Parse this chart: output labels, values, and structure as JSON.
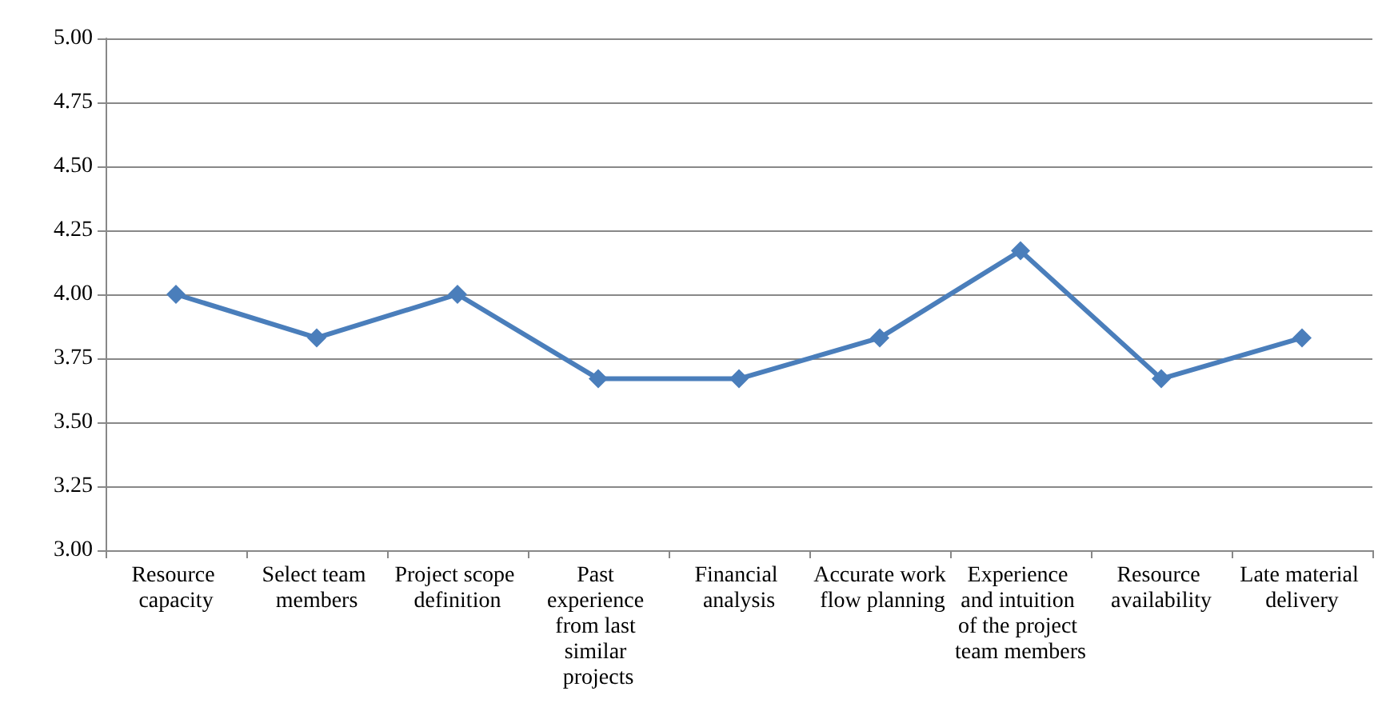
{
  "chart_data": {
    "type": "line",
    "categories": [
      "Resource capacity",
      "Select team members",
      "Project scope definition",
      "Past experience from last similar projects",
      "Financial analysis",
      "Accurate work flow planning",
      "Experience and intuition of the project team members",
      "Resource availability",
      "Late material delivery"
    ],
    "series": [
      {
        "color": "#4a7ebb",
        "values": [
          4.0,
          3.83,
          4.0,
          3.67,
          3.67,
          3.83,
          4.17,
          3.67,
          3.83
        ]
      }
    ],
    "ylim": [
      3,
      5
    ],
    "yticks": [
      {
        "value": 3,
        "label": "3.00"
      },
      {
        "value": 3.25,
        "label": "3.25"
      },
      {
        "value": 3.5,
        "label": "3.50"
      },
      {
        "value": 3.75,
        "label": "3.75"
      },
      {
        "value": 4,
        "label": "4.00"
      },
      {
        "value": 4.25,
        "label": "4.25"
      },
      {
        "value": 4.5,
        "label": "4.50"
      },
      {
        "value": 4.75,
        "label": "4.75"
      },
      {
        "value": 5,
        "label": "5.00"
      }
    ],
    "grid": "y",
    "marker": "diamond",
    "line_style": "solid"
  }
}
